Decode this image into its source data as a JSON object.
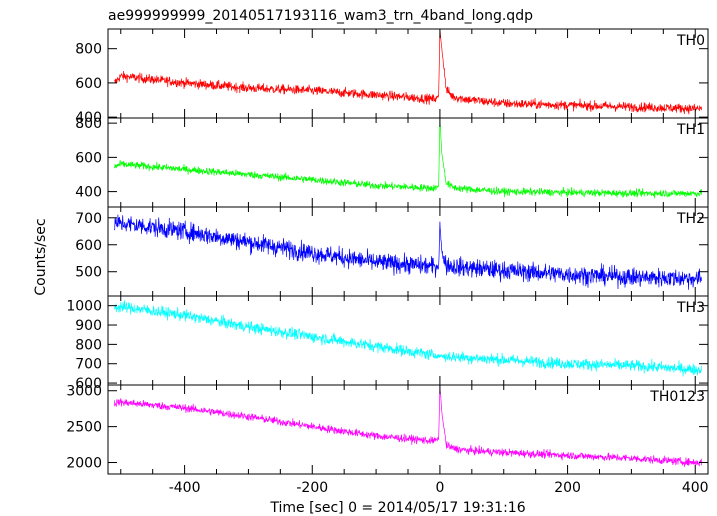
{
  "chart_data": {
    "type": "line",
    "title": "ae999999999_20140517193116_wam3_trn_4band_long.qdp",
    "xlabel": "Time [sec] 0 = 2014/05/17 19:31:16",
    "ylabel": "Counts/sec",
    "xlim": [
      -520,
      420
    ],
    "xticks": [
      "-400",
      "-200",
      "0",
      "200",
      "400"
    ],
    "xtick_values": [
      -400,
      -200,
      0,
      200,
      400
    ],
    "grid": false,
    "panels": [
      {
        "name": "TH0",
        "color": "#ff0000",
        "ylim": [
          395,
          915
        ],
        "yticks": [
          "400",
          "600",
          "800"
        ],
        "ytick_values": [
          400,
          600,
          800
        ],
        "x": [
          -510,
          -500,
          -400,
          -300,
          -200,
          -100,
          -10,
          -2,
          0,
          3,
          10,
          20,
          40,
          100,
          200,
          300,
          400,
          410
        ],
        "y": [
          600,
          640,
          600,
          570,
          555,
          530,
          505,
          520,
          915,
          800,
          560,
          520,
          505,
          480,
          470,
          460,
          450,
          450
        ],
        "noise": 28
      },
      {
        "name": "TH1",
        "color": "#00ff00",
        "ylim": [
          310,
          830
        ],
        "yticks": [
          "400",
          "600",
          "800"
        ],
        "ytick_values": [
          400,
          600,
          800
        ],
        "x": [
          -510,
          -500,
          -400,
          -300,
          -200,
          -100,
          -10,
          -2,
          0,
          3,
          10,
          20,
          40,
          100,
          200,
          300,
          400,
          410
        ],
        "y": [
          545,
          560,
          530,
          500,
          470,
          435,
          420,
          430,
          830,
          620,
          450,
          425,
          415,
          400,
          395,
          390,
          390,
          390
        ],
        "noise": 22
      },
      {
        "name": "TH2",
        "color": "#0000ff",
        "ylim": [
          410,
          740
        ],
        "yticks": [
          "500",
          "600",
          "700"
        ],
        "ytick_values": [
          500,
          600,
          700
        ],
        "x": [
          -510,
          -500,
          -400,
          -300,
          -200,
          -100,
          -10,
          -2,
          0,
          3,
          10,
          20,
          40,
          100,
          200,
          300,
          400,
          410
        ],
        "y": [
          680,
          680,
          650,
          610,
          570,
          535,
          520,
          520,
          680,
          570,
          525,
          520,
          515,
          505,
          490,
          480,
          475,
          475
        ],
        "noise": 35
      },
      {
        "name": "TH3",
        "color": "#00ffff",
        "ylim": [
          590,
          1050
        ],
        "yticks": [
          "600",
          "700",
          "800",
          "900",
          "1000"
        ],
        "ytick_values": [
          600,
          700,
          800,
          900,
          1000
        ],
        "x": [
          -510,
          -500,
          -400,
          -300,
          -200,
          -100,
          0,
          100,
          200,
          300,
          400,
          410
        ],
        "y": [
          990,
          995,
          950,
          890,
          840,
          790,
          740,
          720,
          700,
          690,
          670,
          668
        ],
        "noise": 30
      },
      {
        "name": "TH0123",
        "color": "#ff00ff",
        "ylim": [
          1840,
          3080
        ],
        "yticks": [
          "2000",
          "2500",
          "3000"
        ],
        "ytick_values": [
          2000,
          2500,
          3000
        ],
        "x": [
          -510,
          -500,
          -400,
          -300,
          -200,
          -100,
          -10,
          -2,
          0,
          3,
          10,
          20,
          40,
          100,
          200,
          300,
          400,
          410
        ],
        "y": [
          2830,
          2840,
          2760,
          2640,
          2500,
          2370,
          2300,
          2330,
          3060,
          2700,
          2240,
          2200,
          2170,
          2140,
          2100,
          2060,
          2000,
          2000
        ],
        "noise": 55
      }
    ]
  }
}
